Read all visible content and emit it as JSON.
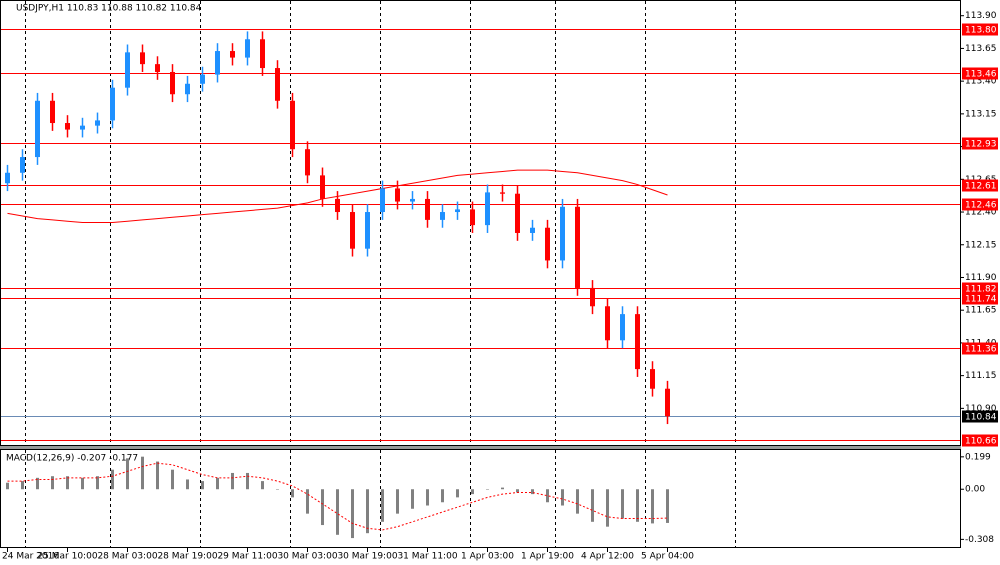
{
  "chart_data": {
    "type": "candlestick",
    "title": "USDJPY,H1 110.83 110.88 110.82 110.84",
    "categories": [
      "24 Mar 2016",
      null,
      null,
      null,
      "25 Mar 10:00",
      null,
      null,
      null,
      "28 Mar 03:00",
      null,
      null,
      null,
      "28 Mar 19:00",
      null,
      null,
      null,
      "29 Mar 11:00",
      null,
      null,
      null,
      "30 Mar 03:00",
      null,
      null,
      null,
      "30 Mar 19:00",
      null,
      null,
      null,
      "31 Mar 11:00",
      null,
      null,
      null,
      "1 Apr 03:00",
      null,
      null,
      null,
      "1 Apr 19:00",
      null,
      null,
      null,
      "4 Apr 12:00",
      null,
      null,
      null,
      "5 Apr 04:00"
    ],
    "series": [
      {
        "up_color": "#1e90ff",
        "down_color": "#ff0000",
        "values": [
          [
            112.62,
            112.76,
            112.56,
            112.7
          ],
          [
            112.7,
            112.88,
            112.64,
            112.82
          ],
          [
            112.82,
            113.31,
            112.76,
            113.25
          ],
          [
            113.25,
            113.31,
            113.02,
            113.08
          ],
          [
            113.08,
            113.14,
            112.97,
            113.03
          ],
          [
            113.03,
            113.12,
            112.97,
            113.06
          ],
          [
            113.06,
            113.16,
            113.0,
            113.1
          ],
          [
            113.1,
            113.41,
            113.04,
            113.35
          ],
          [
            113.35,
            113.68,
            113.29,
            113.62
          ],
          [
            113.62,
            113.68,
            113.47,
            113.53
          ],
          [
            113.53,
            113.59,
            113.41,
            113.47
          ],
          [
            113.47,
            113.53,
            113.24,
            113.3
          ],
          [
            113.3,
            113.44,
            113.24,
            113.38
          ],
          [
            113.38,
            113.51,
            113.32,
            113.45
          ],
          [
            113.45,
            113.69,
            113.39,
            113.63
          ],
          [
            113.63,
            113.69,
            113.52,
            113.58
          ],
          [
            113.58,
            113.78,
            113.52,
            113.72
          ],
          [
            113.72,
            113.78,
            113.44,
            113.5
          ],
          [
            113.5,
            113.56,
            113.19,
            113.25
          ],
          [
            113.25,
            113.31,
            112.82,
            112.88
          ],
          [
            112.88,
            112.94,
            112.62,
            112.68
          ],
          [
            112.68,
            112.74,
            112.44,
            112.5
          ],
          [
            112.5,
            112.56,
            112.34,
            112.4
          ],
          [
            112.4,
            112.46,
            112.06,
            112.12
          ],
          [
            112.12,
            112.46,
            112.06,
            112.4
          ],
          [
            112.4,
            112.64,
            112.34,
            112.58
          ],
          [
            112.58,
            112.64,
            112.42,
            112.48
          ],
          [
            112.48,
            112.56,
            112.42,
            112.5
          ],
          [
            112.5,
            112.56,
            112.28,
            112.34
          ],
          [
            112.34,
            112.46,
            112.28,
            112.4
          ],
          [
            112.4,
            112.48,
            112.34,
            112.42
          ],
          [
            112.42,
            112.48,
            112.24,
            112.3
          ],
          [
            112.3,
            112.61,
            112.24,
            112.55
          ],
          [
            112.55,
            112.61,
            112.48,
            112.54
          ],
          [
            112.54,
            112.6,
            112.18,
            112.24
          ],
          [
            112.24,
            112.34,
            112.18,
            112.28
          ],
          [
            112.28,
            112.34,
            111.97,
            112.03
          ],
          [
            112.03,
            112.5,
            111.97,
            112.44
          ],
          [
            112.44,
            112.5,
            111.76,
            111.82
          ],
          [
            111.82,
            111.88,
            111.62,
            111.68
          ],
          [
            111.68,
            111.74,
            111.36,
            111.42
          ],
          [
            111.42,
            111.68,
            111.36,
            111.62
          ],
          [
            111.62,
            111.68,
            111.14,
            111.2
          ],
          [
            111.2,
            111.26,
            110.99,
            111.05
          ],
          [
            111.05,
            111.11,
            110.78,
            110.84
          ]
        ]
      }
    ],
    "overlay": {
      "color": "#ff0000",
      "values": [
        112.39,
        112.37,
        112.35,
        112.34,
        112.33,
        112.32,
        112.32,
        112.32,
        112.33,
        112.34,
        112.35,
        112.36,
        112.37,
        112.38,
        112.39,
        112.4,
        112.41,
        112.42,
        112.43,
        112.45,
        112.47,
        112.5,
        112.52,
        112.54,
        112.56,
        112.58,
        112.6,
        112.62,
        112.64,
        112.66,
        112.68,
        112.69,
        112.7,
        112.71,
        112.72,
        112.72,
        112.72,
        112.71,
        112.7,
        112.68,
        112.66,
        112.64,
        112.61,
        112.57,
        112.53
      ]
    },
    "ylim": [
      110.62,
      114.02
    ],
    "yticks": [
      {
        "value": 113.9,
        "label": "113.90"
      },
      113.65,
      {
        "value": 113.4,
        "label": "113.40"
      },
      113.15,
      {
        "value": 112.9,
        "label": "112.90"
      },
      112.65,
      {
        "value": 112.4,
        "label": "112.40"
      },
      112.15,
      {
        "value": 111.9,
        "label": "111.90"
      },
      111.65,
      {
        "value": 111.4,
        "label": "111.40"
      },
      111.15,
      {
        "value": 110.9,
        "label": "110.90"
      }
    ],
    "levels": [
      {
        "value": 113.8,
        "label": "113.80"
      },
      113.46,
      112.93,
      112.61,
      112.46,
      111.82,
      111.74,
      111.36,
      110.66
    ],
    "level_color": "#ff0000",
    "last_price": 110.84,
    "macd": {
      "type": "bar",
      "title": "MACD(12,26,9) -0.207 -0.177",
      "color": "#808080",
      "signal_color": "#ff0000",
      "values": [
        0.04,
        0.05,
        0.07,
        0.08,
        0.08,
        0.07,
        0.08,
        0.12,
        0.19,
        0.2,
        0.17,
        0.12,
        0.06,
        0.05,
        0.07,
        0.1,
        0.1,
        0.05,
        0.0,
        -0.05,
        -0.15,
        -0.22,
        -0.28,
        -0.3,
        -0.27,
        -0.2,
        -0.15,
        -0.12,
        -0.1,
        -0.08,
        -0.05,
        -0.03,
        0.0,
        0.01,
        -0.02,
        -0.03,
        -0.08,
        -0.1,
        -0.15,
        -0.2,
        -0.23,
        -0.18,
        -0.2,
        -0.21,
        -0.207
      ],
      "signal": [
        0.05,
        0.05,
        0.06,
        0.06,
        0.07,
        0.07,
        0.07,
        0.08,
        0.11,
        0.14,
        0.16,
        0.15,
        0.12,
        0.09,
        0.07,
        0.07,
        0.08,
        0.07,
        0.05,
        0.02,
        -0.03,
        -0.09,
        -0.15,
        -0.21,
        -0.24,
        -0.25,
        -0.23,
        -0.2,
        -0.17,
        -0.14,
        -0.11,
        -0.08,
        -0.05,
        -0.03,
        -0.02,
        -0.02,
        -0.04,
        -0.06,
        -0.09,
        -0.13,
        -0.17,
        -0.18,
        -0.18,
        -0.18,
        -0.177
      ],
      "ylim": [
        -0.361,
        0.241
      ],
      "yticks": [
        0.199,
        {
          "value": 0,
          "label": "0.00"
        },
        -0.308
      ]
    }
  }
}
